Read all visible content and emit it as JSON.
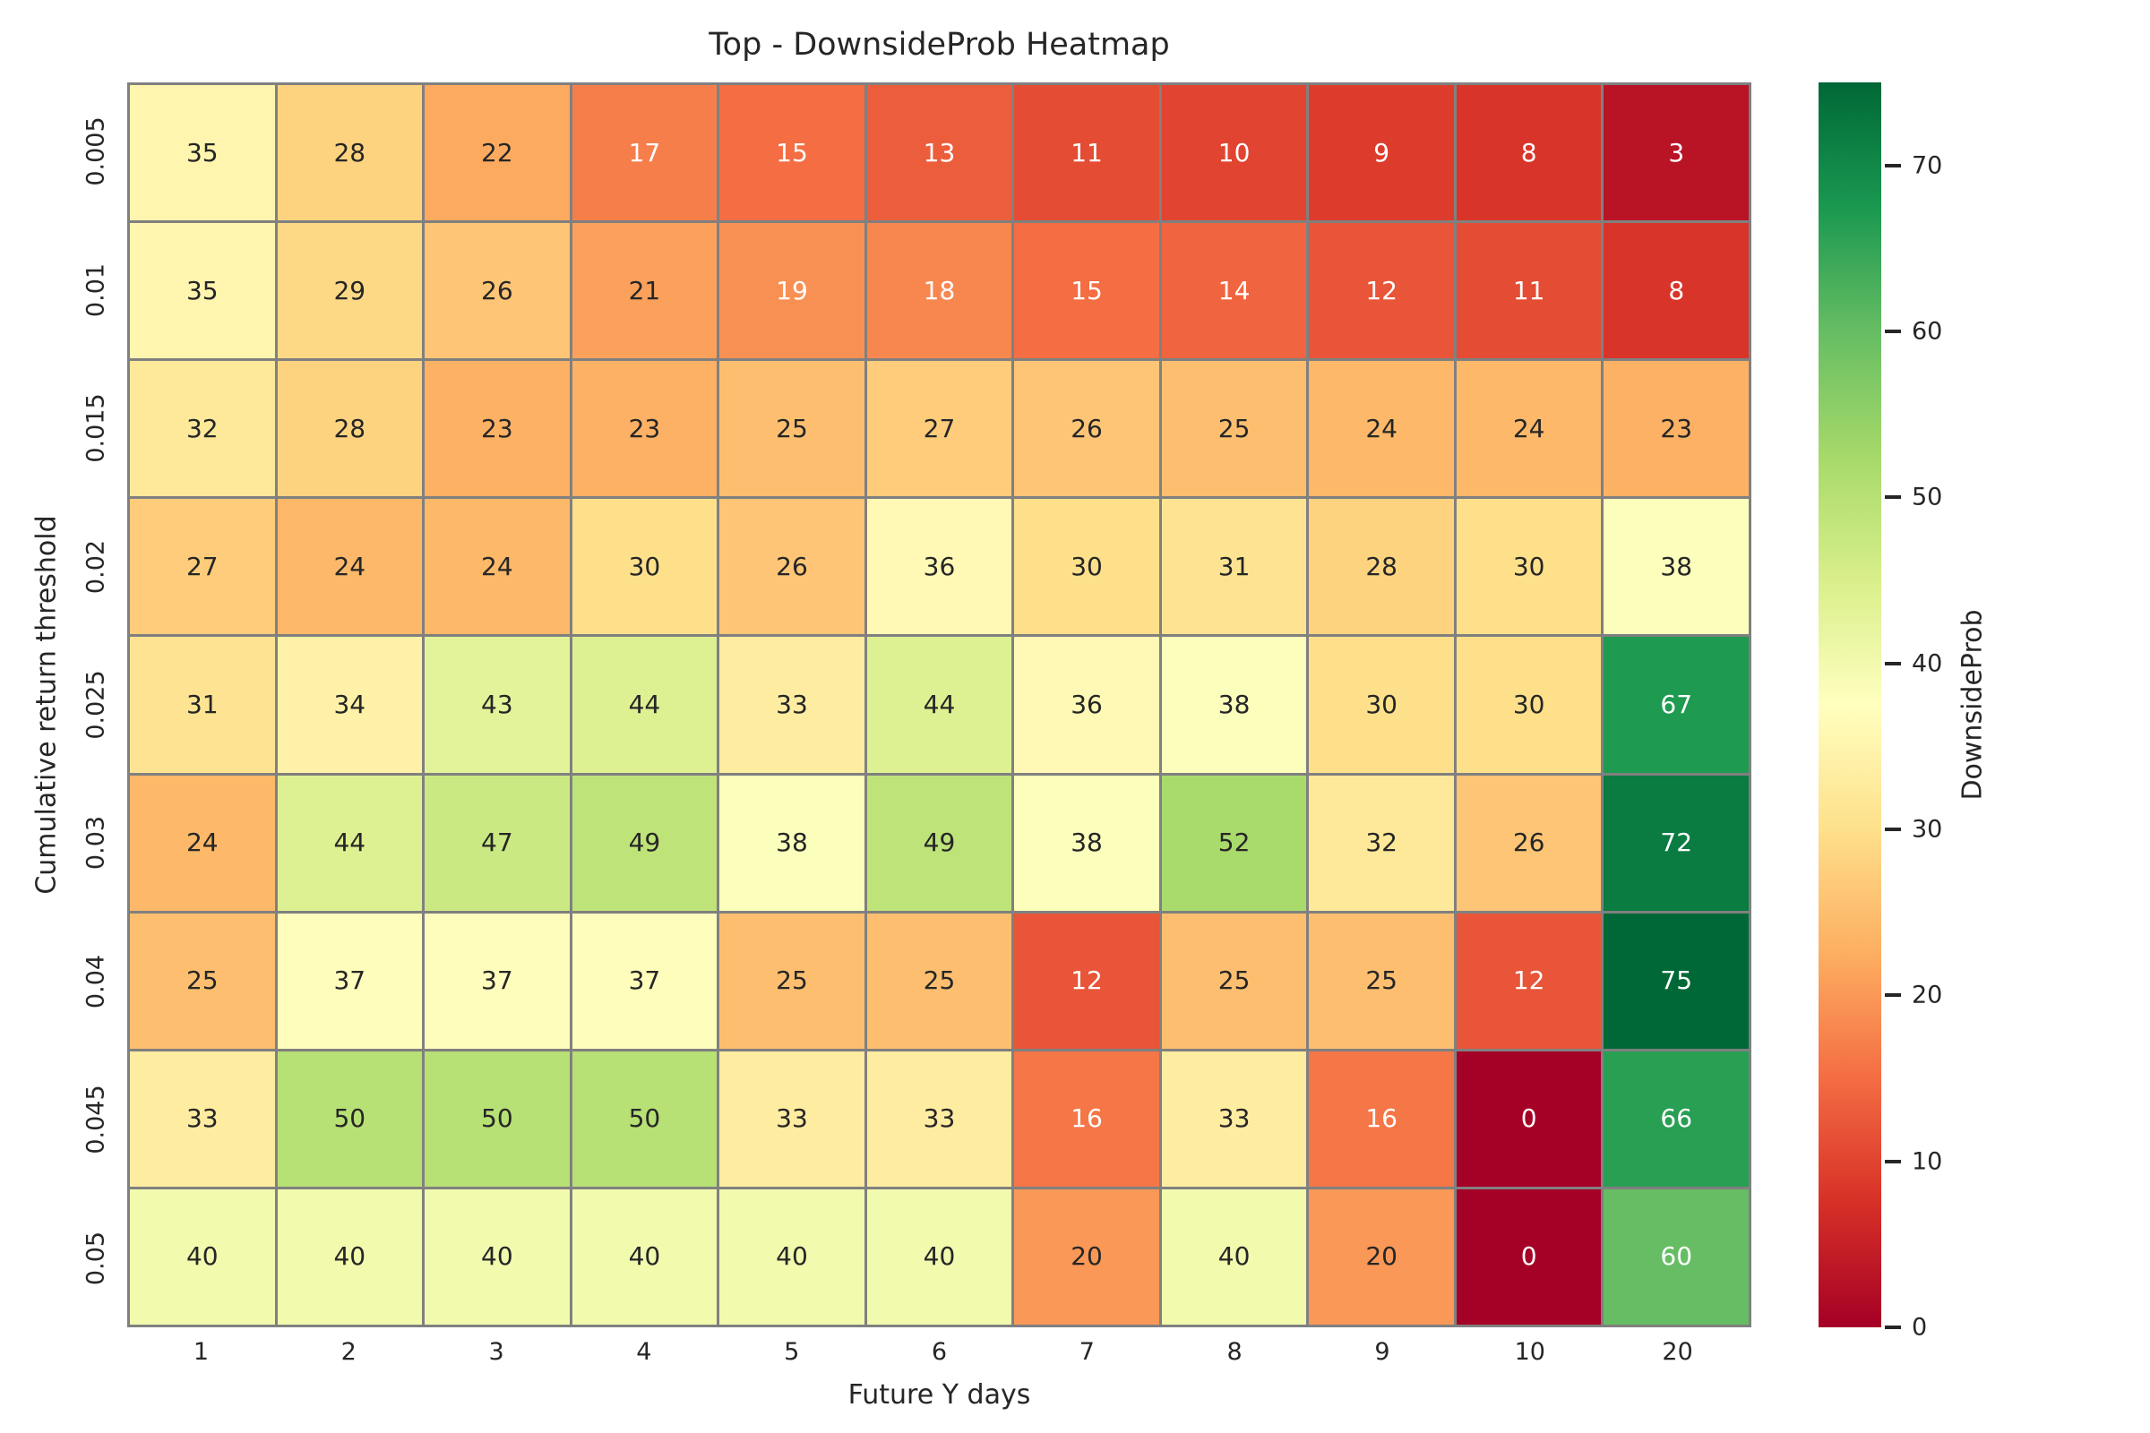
{
  "title": "Top - DownsideProb Heatmap",
  "chart_data": {
    "type": "heatmap",
    "title": "Top - DownsideProb Heatmap",
    "xlabel": "Future Y days",
    "ylabel": "Cumulative return threshold",
    "x_categories": [
      "1",
      "2",
      "3",
      "4",
      "5",
      "6",
      "7",
      "8",
      "9",
      "10",
      "20"
    ],
    "y_categories": [
      "0.005",
      "0.01",
      "0.015",
      "0.02",
      "0.025",
      "0.03",
      "0.04",
      "0.045",
      "0.05"
    ],
    "values": [
      [
        35,
        28,
        22,
        17,
        15,
        13,
        11,
        10,
        9,
        8,
        3
      ],
      [
        35,
        29,
        26,
        21,
        19,
        18,
        15,
        14,
        12,
        11,
        8
      ],
      [
        32,
        28,
        23,
        23,
        25,
        27,
        26,
        25,
        24,
        24,
        23
      ],
      [
        27,
        24,
        24,
        30,
        26,
        36,
        30,
        31,
        28,
        30,
        38
      ],
      [
        31,
        34,
        43,
        44,
        33,
        44,
        36,
        38,
        30,
        30,
        67
      ],
      [
        24,
        44,
        47,
        49,
        38,
        49,
        38,
        52,
        32,
        26,
        72
      ],
      [
        25,
        37,
        37,
        37,
        25,
        25,
        12,
        25,
        25,
        12,
        75
      ],
      [
        33,
        50,
        50,
        50,
        33,
        33,
        16,
        33,
        16,
        0,
        66
      ],
      [
        40,
        40,
        40,
        40,
        40,
        40,
        20,
        40,
        20,
        0,
        60
      ]
    ],
    "colorbar": {
      "label": "DownsideProb",
      "ticks": [
        0,
        10,
        20,
        30,
        40,
        50,
        60,
        70
      ],
      "vmin": 0,
      "vmax": 75
    },
    "colormap": {
      "name": "RdYlGn",
      "stops": [
        "#a50026",
        "#d73027",
        "#f46d43",
        "#fdae61",
        "#fee08b",
        "#ffffbf",
        "#d9ef8b",
        "#a6d96a",
        "#66bd63",
        "#1a9850",
        "#006837"
      ]
    },
    "style": {
      "grid_line_color": "#808080",
      "annotation_dark_color": "#262626",
      "annotation_light_color": "#ffffff",
      "background": "#ffffff",
      "legend_position": "right",
      "grid": "cell-borders"
    }
  }
}
